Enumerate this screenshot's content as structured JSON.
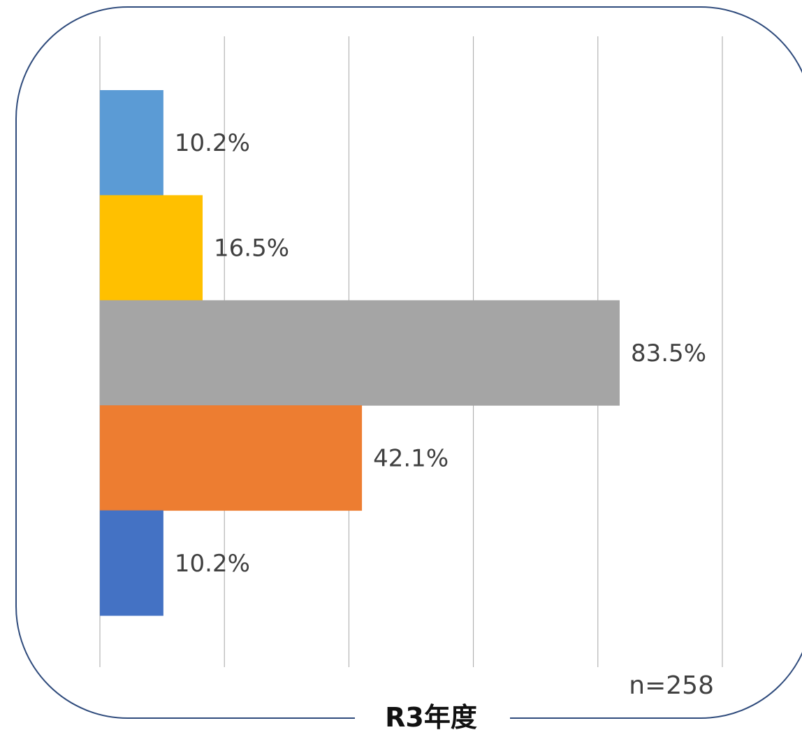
{
  "chart_data": {
    "type": "bar",
    "orientation": "horizontal",
    "title": "R3年度",
    "sample_size_label": "n=258",
    "xlim": [
      0,
      100
    ],
    "grid": true,
    "legend": "none",
    "bars": [
      {
        "value": 10.2,
        "label": "10.2%",
        "color": "#5B9BD5"
      },
      {
        "value": 16.5,
        "label": "16.5%",
        "color": "#FFC000"
      },
      {
        "value": 83.5,
        "label": "83.5%",
        "color": "#A5A5A5"
      },
      {
        "value": 42.1,
        "label": "42.1%",
        "color": "#ED7D31"
      },
      {
        "value": 10.2,
        "label": "10.2%",
        "color": "#4472C4"
      }
    ]
  },
  "colors": {
    "frame": "#2F4B7C",
    "gridline": "#A6A6A6"
  }
}
